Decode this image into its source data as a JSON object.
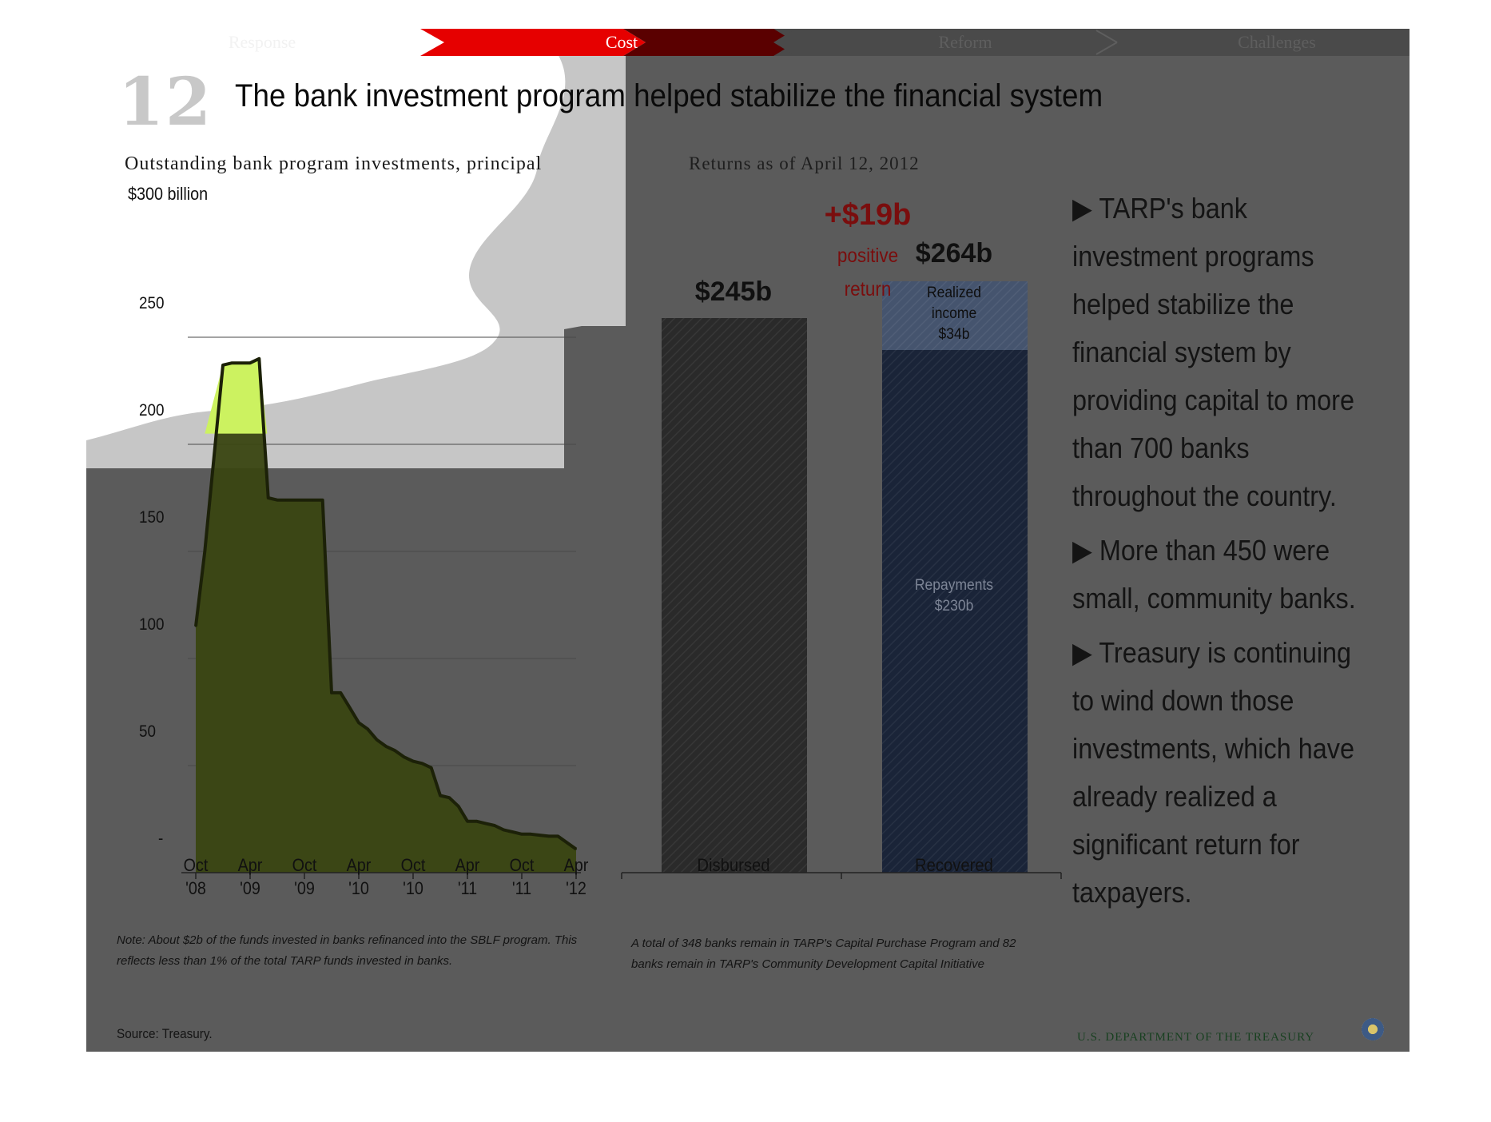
{
  "nav": {
    "items": [
      {
        "label": "Response"
      },
      {
        "label": "Cost"
      },
      {
        "label": "Reform"
      },
      {
        "label": "Challenges"
      }
    ],
    "active_color": "#e00000"
  },
  "slide": {
    "number": "12",
    "title": "The bank investment program helped stabilize the financial system"
  },
  "left_chart": {
    "subtitle": "Outstanding bank program investments, principal",
    "unit_label": "$300 billion",
    "y_ticks": [
      "250",
      "200",
      "150",
      "100",
      "50",
      "-"
    ],
    "x_ticks": [
      {
        "line1": "Oct",
        "line2": "'08"
      },
      {
        "line1": "Apr",
        "line2": "'09"
      },
      {
        "line1": "Oct",
        "line2": "'09"
      },
      {
        "line1": "Apr",
        "line2": "'10"
      },
      {
        "line1": "Oct",
        "line2": "'10"
      },
      {
        "line1": "Apr",
        "line2": "'11"
      },
      {
        "line1": "Oct",
        "line2": "'11"
      },
      {
        "line1": "Apr",
        "line2": "'12"
      }
    ],
    "note": "Note: About $2b of the funds invested in banks refinanced into the SBLF program. This reflects less than 1% of the total TARP funds invested in banks.",
    "fill_color": "#3a4612",
    "highlight_color": "#ccf260"
  },
  "right_chart": {
    "subtitle": "Returns as of April 12, 2012",
    "delta_value": "+$19b",
    "delta_line1": "positive",
    "delta_line2": "return",
    "note": "A total of 348 banks remain in TARP's Capital Purchase Program and 82 banks remain in TARP's Community Development Capital Initiative",
    "bars": [
      {
        "label": "Disbursed",
        "total_label": "$245b"
      },
      {
        "label": "Recovered",
        "total_label": "$264b",
        "segments": [
          {
            "line1": "Repayments",
            "line2": "$230b"
          },
          {
            "line1": "Realized",
            "line2": "income",
            "line3": "$34b"
          }
        ]
      }
    ],
    "colors": {
      "disbursed": "#2a2a2a",
      "repayments": "#1a2438",
      "income": "#45546e"
    }
  },
  "bullets": [
    "▶ TARP's bank investment programs helped stabilize the financial system by providing capital to more than 700 banks throughout the country.",
    "▶ More than 450 were small, community banks.",
    "▶ Treasury is continuing to wind down those investments, which have already realized a significant return for taxpayers."
  ],
  "source": "Source: Treasury.",
  "footer": "U.S. DEPARTMENT OF THE TREASURY",
  "chart_data": [
    {
      "type": "area",
      "title": "Outstanding bank program investments, principal",
      "ylabel": "$300 billion",
      "ylim": [
        0,
        300
      ],
      "x": [
        "2008-10",
        "2008-11",
        "2009-01",
        "2009-02",
        "2009-03",
        "2009-04",
        "2009-05",
        "2009-06",
        "2009-07",
        "2009-08",
        "2009-09",
        "2009-10",
        "2009-11",
        "2009-12",
        "2010-01",
        "2010-02",
        "2010-03",
        "2010-04",
        "2010-05",
        "2010-06",
        "2010-07",
        "2010-08",
        "2010-09",
        "2010-10",
        "2010-11",
        "2010-12",
        "2011-01",
        "2011-02",
        "2011-03",
        "2011-04",
        "2011-05",
        "2011-06",
        "2011-07",
        "2011-08",
        "2011-09",
        "2011-10",
        "2011-11",
        "2011-12",
        "2012-01",
        "2012-02",
        "2012-03",
        "2012-04"
      ],
      "values": [
        115,
        150,
        237,
        238,
        238,
        238,
        240,
        175,
        174,
        174,
        174,
        174,
        174,
        174,
        84,
        84,
        77,
        70,
        67,
        62,
        59,
        57,
        54,
        52,
        51,
        49,
        36,
        35,
        31,
        24,
        24,
        23,
        22,
        20,
        19,
        18,
        18,
        17.5,
        17,
        17,
        14,
        11
      ],
      "x_tick_labels": [
        "Oct '08",
        "Apr '09",
        "Oct '09",
        "Apr '10",
        "Oct '10",
        "Apr '11",
        "Oct '11",
        "Apr '12"
      ],
      "y_tick_labels": [
        "-",
        "50",
        "100",
        "150",
        "200",
        "250"
      ]
    },
    {
      "type": "bar",
      "title": "Returns as of April 12, 2012",
      "categories": [
        "Disbursed",
        "Recovered"
      ],
      "series": [
        {
          "name": "Repayments",
          "values": [
            245,
            230
          ]
        },
        {
          "name": "Realized income",
          "values": [
            0,
            34
          ]
        }
      ],
      "totals": [
        245,
        264
      ],
      "ylim": [
        0,
        264
      ]
    }
  ]
}
